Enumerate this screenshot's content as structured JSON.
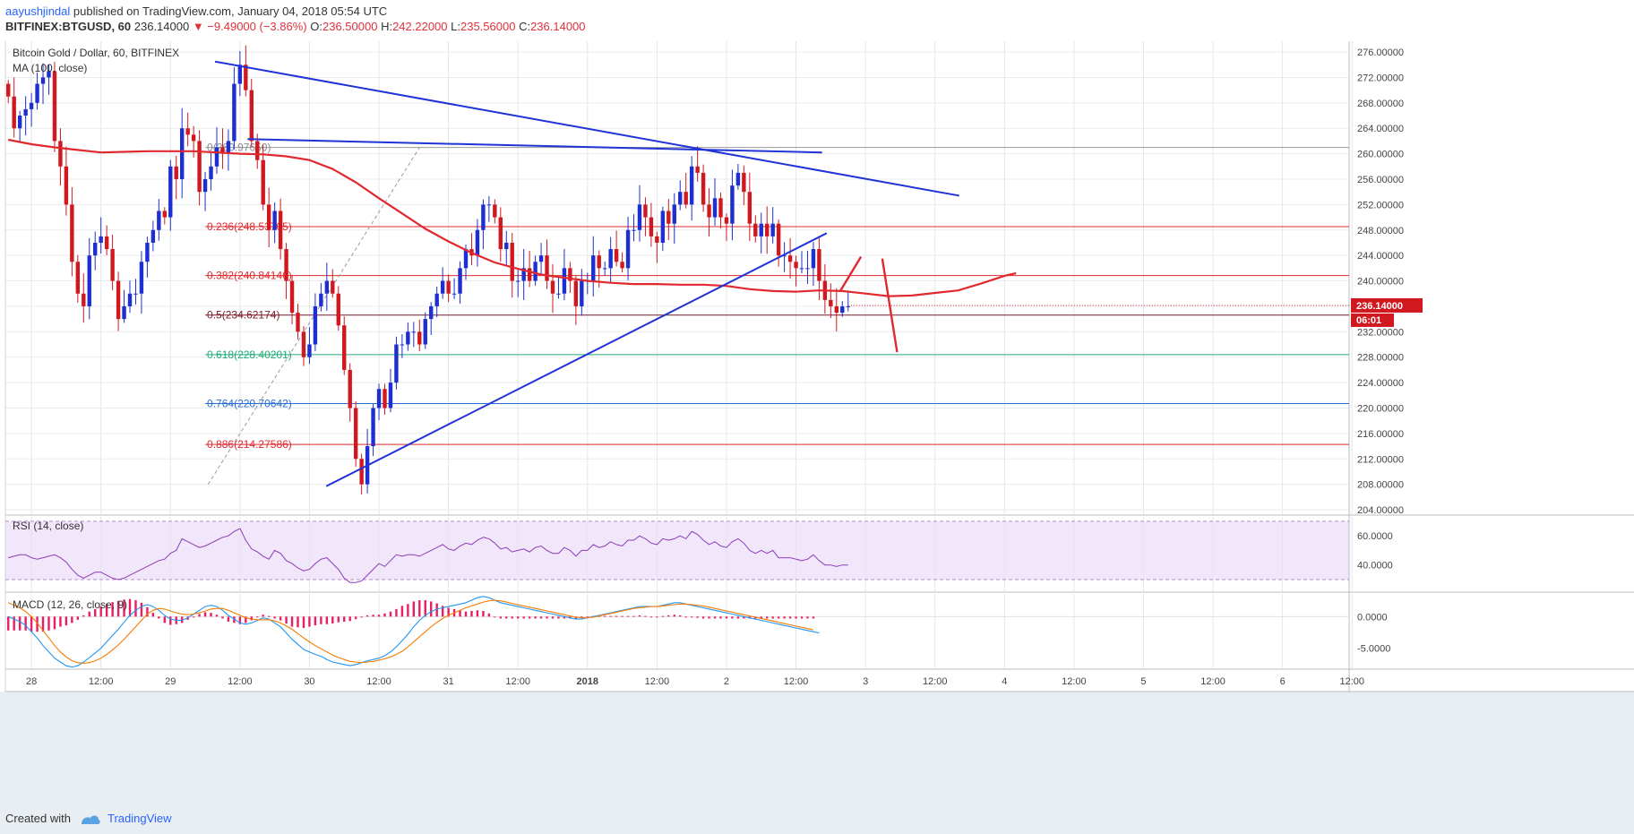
{
  "header": {
    "author": "aayushjindal",
    "published_text": "published on TradingView.com, January 04, 2018 05:54 UTC",
    "symbol": "BITFINEX:BTGUSD, 60",
    "last_price": "236.14000",
    "change": "−9.49000 (−3.86%)",
    "open_label": "O:",
    "open": "236.50000",
    "high_label": "H:",
    "high": "242.22000",
    "low_label": "L:",
    "low": "235.56000",
    "close_label": "C:",
    "close": "236.14000"
  },
  "footer": {
    "created_with": "Created with",
    "brand": "TradingView"
  },
  "colors": {
    "up": "#1d2fd0",
    "down": "#d1181f",
    "ma": "#e0282e",
    "trend": "#1f33d6",
    "fib_red": "#e0282e",
    "fib_green": "#22aa77",
    "fib_blue": "#2a6fd1",
    "rsi": "#8a3db8",
    "rsi_bg": "#f2e6fb",
    "macd_line": "#2196f3",
    "signal_line": "#f57c00",
    "hist": "#e91e63",
    "bg": "#ffffff"
  },
  "chart_data": [
    {
      "type": "candlestick",
      "title": "Bitcoin Gold / Dollar, 60, BITFINEX",
      "indicator_label": "MA (100, close)",
      "ylim": [
        203.3,
        277.7
      ],
      "y_ticks": [
        "204.00000",
        "208.00000",
        "212.00000",
        "216.00000",
        "220.00000",
        "224.00000",
        "228.00000",
        "232.00000",
        "236.00000",
        "240.00000",
        "244.00000",
        "248.00000",
        "252.00000",
        "256.00000",
        "260.00000",
        "264.00000",
        "268.00000",
        "272.00000",
        "276.00000"
      ],
      "x_ticks": [
        {
          "label": "28",
          "bar": 4
        },
        {
          "label": "12:00",
          "bar": 16
        },
        {
          "label": "29",
          "bar": 28
        },
        {
          "label": "12:00",
          "bar": 40
        },
        {
          "label": "30",
          "bar": 52
        },
        {
          "label": "12:00",
          "bar": 64
        },
        {
          "label": "31",
          "bar": 76
        },
        {
          "label": "12:00",
          "bar": 88
        },
        {
          "label": "2018",
          "bar": 100
        },
        {
          "label": "12:00",
          "bar": 112
        },
        {
          "label": "2",
          "bar": 124
        },
        {
          "label": "12:00",
          "bar": 136
        },
        {
          "label": "3",
          "bar": 148
        },
        {
          "label": "12:00",
          "bar": 160
        },
        {
          "label": "4",
          "bar": 172
        },
        {
          "label": "12:00",
          "bar": 184
        },
        {
          "label": "5",
          "bar": 196
        },
        {
          "label": "12:00",
          "bar": 208
        },
        {
          "label": "6",
          "bar": 220
        },
        {
          "label": "12:00",
          "bar": 232
        }
      ],
      "last_price_label": "236.14000",
      "countdown": "06:01",
      "closes": [
        269,
        264,
        266,
        267,
        268,
        271,
        272,
        273,
        262,
        258,
        252,
        243,
        238,
        236,
        244,
        246,
        247,
        245,
        240,
        234,
        236,
        238,
        238,
        243,
        246,
        248,
        251,
        250,
        258,
        256,
        264,
        263,
        262,
        254,
        256,
        258,
        261,
        260,
        262,
        271,
        274,
        270,
        262,
        259,
        252,
        248,
        251,
        245,
        240,
        235,
        232,
        228,
        230,
        236,
        238,
        240,
        238,
        233,
        226,
        220,
        212,
        208,
        214,
        220,
        223,
        220,
        224,
        230,
        230,
        232,
        232,
        230,
        234,
        236,
        238,
        240,
        238,
        238,
        242,
        245,
        244,
        248,
        252,
        252,
        250,
        245,
        246,
        240,
        240,
        242,
        240,
        243,
        244,
        240,
        238,
        238,
        242,
        240,
        236,
        240,
        240,
        244,
        242,
        242,
        245,
        243,
        242,
        248,
        248,
        252,
        250,
        247,
        246,
        251,
        249,
        252,
        254,
        252,
        258,
        257,
        252,
        250,
        253,
        250,
        249,
        255,
        257,
        254,
        249,
        247,
        249,
        247,
        249,
        244,
        244,
        243,
        242,
        242,
        242,
        245,
        240,
        237,
        236,
        235,
        236,
        236
      ],
      "bar_range": [
        0,
        145
      ],
      "bar_color_hint": "candles colored blue (up) / red (down)",
      "ma_100": [
        [
          0,
          262.2
        ],
        [
          4,
          261.5
        ],
        [
          8,
          261.0
        ],
        [
          12,
          260.6
        ],
        [
          16,
          260.2
        ],
        [
          20,
          260.3
        ],
        [
          24,
          260.4
        ],
        [
          28,
          260.4
        ],
        [
          32,
          260.4
        ],
        [
          36,
          260.2
        ],
        [
          40,
          260.0
        ],
        [
          44,
          259.9
        ],
        [
          48,
          259.6
        ],
        [
          52,
          259.0
        ],
        [
          56,
          257.6
        ],
        [
          60,
          255.5
        ],
        [
          64,
          253.0
        ],
        [
          68,
          250.6
        ],
        [
          72,
          248.2
        ],
        [
          76,
          246.2
        ],
        [
          80,
          244.4
        ],
        [
          84,
          242.9
        ],
        [
          88,
          241.9
        ],
        [
          92,
          241.0
        ],
        [
          96,
          240.5
        ],
        [
          100,
          240.0
        ],
        [
          104,
          239.7
        ],
        [
          108,
          239.5
        ],
        [
          112,
          239.5
        ],
        [
          116,
          239.4
        ],
        [
          120,
          239.4
        ],
        [
          124,
          239.2
        ],
        [
          128,
          238.7
        ],
        [
          132,
          238.4
        ],
        [
          136,
          238.3
        ],
        [
          140,
          238.5
        ],
        [
          144,
          238.4
        ],
        [
          148,
          238.0
        ],
        [
          152,
          237.6
        ],
        [
          156,
          237.7
        ],
        [
          160,
          238.1
        ],
        [
          164,
          238.5
        ],
        [
          168,
          239.6
        ],
        [
          172,
          240.8
        ],
        [
          174,
          241.2
        ]
      ],
      "fibonacci": [
        {
          "ratio": "0",
          "label": "0(260.97650)",
          "value": 260.9765
        },
        {
          "ratio": "0.236",
          "label": "0.236(248.53705)",
          "value": 248.53705
        },
        {
          "ratio": "0.382",
          "label": "0.382(240.84146)",
          "value": 240.84146
        },
        {
          "ratio": "0.5",
          "label": "0.5(234.62174)",
          "value": 234.62174
        },
        {
          "ratio": "0.618",
          "label": "0.618(228.40201)",
          "value": 228.40201
        },
        {
          "ratio": "0.764",
          "label": "0.764(220.70642)",
          "value": 220.70642
        },
        {
          "ratio": "0.886",
          "label": "0.886(214.27586)",
          "value": 214.27586
        }
      ],
      "trendlines": [
        {
          "from": [
            22.5,
            274.5
          ],
          "to": [
            102.8,
            253.4
          ]
        },
        {
          "from": [
            26.0,
            262.3
          ],
          "to": [
            88.0,
            260.2
          ]
        },
        {
          "from": [
            34.5,
            207.7
          ],
          "to": [
            88.5,
            247.5
          ]
        }
      ],
      "projection_arrows": [
        {
          "from": [
            90.0,
            238.5
          ],
          "to": [
            92.2,
            243.8
          ]
        },
        {
          "from": [
            94.5,
            243.5
          ],
          "to": [
            96.1,
            228.8
          ]
        }
      ]
    },
    {
      "type": "line",
      "title": "RSI (14, close)",
      "ylim": [
        22,
        73
      ],
      "y_ticks": [
        "40.0000",
        "60.0000"
      ],
      "band": [
        30,
        70
      ],
      "values": [
        45,
        46,
        47,
        47,
        45,
        44,
        45,
        46,
        47,
        45,
        42,
        37,
        33,
        31,
        33,
        35,
        35,
        33,
        31,
        30,
        31,
        33,
        35,
        37,
        39,
        41,
        43,
        44,
        48,
        50,
        58,
        56,
        54,
        52,
        53,
        55,
        57,
        59,
        60,
        63,
        65,
        57,
        51,
        49,
        46,
        44,
        50,
        48,
        43,
        41,
        38,
        36,
        37,
        41,
        44,
        45,
        41,
        37,
        31,
        28,
        28,
        29,
        33,
        37,
        41,
        39,
        43,
        47,
        46,
        47,
        47,
        46,
        48,
        50,
        52,
        54,
        51,
        50,
        53,
        55,
        54,
        57,
        59,
        58,
        55,
        51,
        52,
        49,
        50,
        51,
        49,
        52,
        53,
        50,
        48,
        48,
        52,
        50,
        46,
        50,
        50,
        54,
        52,
        53,
        56,
        54,
        53,
        57,
        57,
        60,
        58,
        55,
        54,
        58,
        57,
        58,
        60,
        58,
        63,
        61,
        57,
        54,
        56,
        53,
        52,
        56,
        58,
        55,
        50,
        48,
        50,
        48,
        50,
        45,
        45,
        45,
        44,
        43,
        44,
        47,
        43,
        40,
        40,
        39,
        40,
        40
      ]
    },
    {
      "type": "line+histogram",
      "title": "MACD (12, 26, close, 9)",
      "ylim": [
        -8.2,
        3.6
      ],
      "y_ticks": [
        "0.0000",
        "-5.0000"
      ],
      "macd": [
        0,
        -0.4,
        -0.8,
        -1.4,
        -2.4,
        -3.4,
        -4.6,
        -5.6,
        -6.6,
        -7.2,
        -7.8,
        -8.0,
        -7.8,
        -7.2,
        -6.5,
        -5.8,
        -5.0,
        -4.0,
        -3.0,
        -2.0,
        -0.9,
        0.2,
        1.0,
        1.6,
        1.9,
        1.6,
        1.0,
        0.2,
        -0.4,
        -0.6,
        -0.6,
        -0.2,
        0.4,
        1.0,
        1.6,
        1.8,
        1.6,
        1.0,
        0.2,
        -0.4,
        -1.0,
        -1.2,
        -1.0,
        -0.6,
        -0.2,
        -0.4,
        -1.0,
        -1.6,
        -2.6,
        -3.6,
        -4.4,
        -5.2,
        -5.6,
        -6.0,
        -6.3,
        -6.8,
        -7.2,
        -7.4,
        -7.6,
        -7.8,
        -7.6,
        -7.3,
        -7.0,
        -6.8,
        -6.6,
        -6.2,
        -5.6,
        -4.8,
        -3.8,
        -2.8,
        -1.6,
        -0.6,
        0.2,
        0.8,
        1.2,
        1.4,
        1.6,
        1.8,
        2.0,
        2.2,
        2.6,
        3.0,
        3.2,
        3.0,
        2.6,
        2.2,
        2.0,
        1.8,
        1.6,
        1.4,
        1.2,
        1.0,
        0.8,
        0.6,
        0.4,
        0.2,
        0,
        -0.2,
        -0.4,
        -0.4,
        -0.2,
        0,
        0.2,
        0.4,
        0.6,
        0.8,
        1.0,
        1.2,
        1.4,
        1.6,
        1.6,
        1.6,
        1.6,
        1.8,
        2.0,
        2.2,
        2.2,
        2.0,
        1.8,
        1.6,
        1.4,
        1.2,
        1.0,
        0.8,
        0.6,
        0.4,
        0.2,
        0,
        -0.2,
        -0.4,
        -0.6,
        -0.8,
        -1.0,
        -1.2,
        -1.4,
        -1.6,
        -1.8,
        -2.0,
        -2.2,
        -2.4,
        -2.6
      ],
      "signal": [
        2.2,
        1.8,
        1.4,
        0.8,
        0.0,
        -1.0,
        -2.2,
        -3.4,
        -4.6,
        -5.6,
        -6.4,
        -7.0,
        -7.3,
        -7.4,
        -7.3,
        -7.0,
        -6.6,
        -6.0,
        -5.3,
        -4.5,
        -3.6,
        -2.6,
        -1.6,
        -0.6,
        0.4,
        1.0,
        1.3,
        1.2,
        0.9,
        0.6,
        0.4,
        0.3,
        0.4,
        0.6,
        0.9,
        1.2,
        1.3,
        1.3,
        1.0,
        0.6,
        0.2,
        -0.2,
        -0.4,
        -0.5,
        -0.5,
        -0.5,
        -0.7,
        -1.0,
        -1.5,
        -2.0,
        -2.7,
        -3.4,
        -4.0,
        -4.6,
        -5.1,
        -5.6,
        -6.1,
        -6.5,
        -6.8,
        -7.1,
        -7.2,
        -7.3,
        -7.2,
        -7.1,
        -6.9,
        -6.7,
        -6.4,
        -6.0,
        -5.5,
        -4.8,
        -4.0,
        -3.2,
        -2.4,
        -1.6,
        -0.9,
        -0.3,
        0.2,
        0.6,
        1.0,
        1.4,
        1.7,
        2.0,
        2.3,
        2.5,
        2.6,
        2.5,
        2.3,
        2.1,
        1.9,
        1.7,
        1.5,
        1.3,
        1.1,
        0.9,
        0.7,
        0.5,
        0.3,
        0.1,
        -0.1,
        -0.2,
        -0.2,
        -0.1,
        0.1,
        0.3,
        0.5,
        0.7,
        0.9,
        1.1,
        1.3,
        1.4,
        1.5,
        1.6,
        1.6,
        1.7,
        1.8,
        1.9,
        2.0,
        2.0,
        1.9,
        1.8,
        1.7,
        1.5,
        1.3,
        1.1,
        0.9,
        0.7,
        0.5,
        0.3,
        0.1,
        -0.1,
        -0.3,
        -0.5,
        -0.7,
        -0.9,
        -1.1,
        -1.3,
        -1.5,
        -1.7,
        -1.9,
        -2.1
      ]
    }
  ]
}
